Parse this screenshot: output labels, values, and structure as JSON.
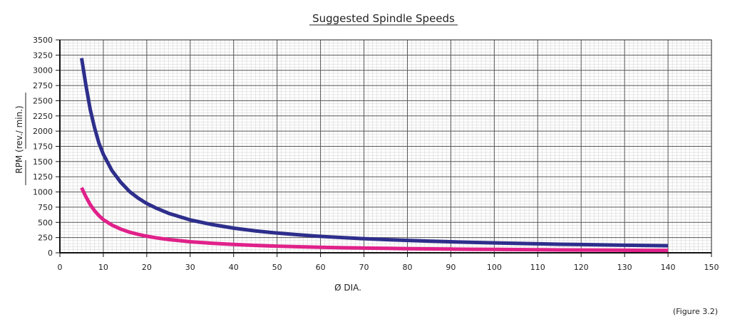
{
  "chart_data": {
    "type": "line",
    "title": "Suggested Spindle Speeds",
    "xlabel": "Ø  DIA.",
    "ylabel": "RPM  (rev./ min.)",
    "xlim": [
      0,
      150
    ],
    "ylim": [
      0,
      3500
    ],
    "xticks": [
      0,
      10,
      20,
      30,
      40,
      50,
      60,
      70,
      80,
      90,
      100,
      110,
      120,
      130,
      140,
      150
    ],
    "yticks": [
      0,
      250,
      500,
      750,
      1000,
      1250,
      1500,
      1750,
      2000,
      2250,
      2500,
      2750,
      3000,
      3250,
      3500
    ],
    "grid": true,
    "series": [
      {
        "color": "#2e2e8c",
        "x": [
          5,
          6,
          7,
          8,
          9,
          10,
          12,
          14,
          16,
          18,
          20,
          22,
          25,
          30,
          35,
          40,
          45,
          50,
          55,
          60,
          65,
          70,
          75,
          80,
          85,
          90,
          95,
          100,
          105,
          110,
          115,
          120,
          125,
          130,
          135,
          140
        ],
        "values": [
          3200,
          2750,
          2350,
          2050,
          1800,
          1620,
          1350,
          1160,
          1010,
          900,
          810,
          740,
          650,
          540,
          465,
          405,
          360,
          325,
          295,
          270,
          250,
          232,
          217,
          203,
          191,
          181,
          171,
          163,
          155,
          148,
          141,
          136,
          130,
          125,
          120,
          116
        ]
      },
      {
        "color": "#e0218a",
        "x": [
          5,
          6,
          7,
          8,
          9,
          10,
          12,
          14,
          16,
          18,
          20,
          22,
          25,
          30,
          35,
          40,
          45,
          50,
          55,
          60,
          65,
          70,
          75,
          80,
          85,
          90,
          95,
          100,
          105,
          110,
          115,
          120,
          125,
          130,
          135,
          140
        ],
        "values": [
          1070,
          920,
          790,
          690,
          610,
          545,
          455,
          390,
          340,
          303,
          272,
          248,
          218,
          182,
          156,
          137,
          121,
          109,
          99,
          91,
          84,
          78,
          73,
          68,
          64,
          61,
          57,
          55,
          52,
          50,
          47,
          45,
          44,
          42,
          40,
          39
        ]
      }
    ]
  },
  "caption": "(Figure 3.2)"
}
